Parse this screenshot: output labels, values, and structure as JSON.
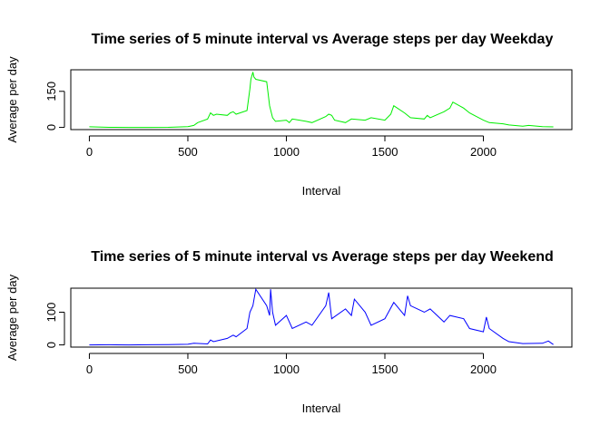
{
  "chart_data": [
    {
      "type": "line",
      "title": "Time series of 5 minute interval vs Average steps per day Weekday",
      "x_label": "Interval",
      "y_label": "Average per day",
      "xlim": [
        -94.2,
        2449.2
      ],
      "ylim": [
        -9.2,
        239.6
      ],
      "xticks": [
        0,
        500,
        1000,
        1500,
        2000
      ],
      "yticks": [
        0,
        150
      ],
      "x": [
        0,
        100,
        200,
        300,
        400,
        500,
        530,
        550,
        600,
        615,
        630,
        645,
        700,
        715,
        730,
        745,
        800,
        815,
        820,
        830,
        835,
        845,
        900,
        915,
        930,
        945,
        1000,
        1015,
        1030,
        1100,
        1130,
        1200,
        1215,
        1230,
        1245,
        1300,
        1330,
        1400,
        1430,
        1500,
        1530,
        1545,
        1600,
        1630,
        1700,
        1715,
        1730,
        1800,
        1830,
        1845,
        1900,
        1930,
        2000,
        2030,
        2100,
        2130,
        2200,
        2230,
        2300,
        2355
      ],
      "series": [
        {
          "name": "Weekday",
          "color": "#00ee00",
          "values": [
            2.3,
            0.4,
            0,
            0,
            0.2,
            3,
            8,
            20,
            35,
            60,
            50,
            55,
            50,
            60,
            65,
            55,
            70,
            160,
            200,
            230,
            210,
            200,
            190,
            90,
            40,
            25,
            30,
            20,
            35,
            25,
            20,
            45,
            55,
            50,
            30,
            20,
            35,
            30,
            40,
            30,
            55,
            90,
            60,
            40,
            35,
            50,
            40,
            65,
            80,
            105,
            80,
            60,
            30,
            20,
            15,
            10,
            5,
            8,
            3,
            2
          ]
        }
      ]
    },
    {
      "type": "line",
      "title": "Time series of 5 minute interval vs Average steps per day Weekend",
      "x_label": "Interval",
      "y_label": "Average per day",
      "xlim": [
        -94.2,
        2449.2
      ],
      "ylim": [
        -6.7,
        173.4
      ],
      "xticks": [
        0,
        500,
        1000,
        1500,
        2000
      ],
      "yticks": [
        0,
        100
      ],
      "x": [
        0,
        100,
        200,
        300,
        400,
        500,
        530,
        600,
        615,
        630,
        700,
        730,
        745,
        800,
        815,
        830,
        845,
        900,
        915,
        920,
        930,
        945,
        1000,
        1030,
        1100,
        1130,
        1200,
        1215,
        1230,
        1300,
        1330,
        1345,
        1400,
        1430,
        1500,
        1545,
        1600,
        1615,
        1630,
        1700,
        1730,
        1800,
        1830,
        1900,
        1930,
        2000,
        2015,
        2030,
        2100,
        2130,
        2200,
        2300,
        2330,
        2355
      ],
      "series": [
        {
          "name": "Weekend",
          "color": "#0000ff",
          "values": [
            0,
            0.5,
            0,
            0.5,
            1,
            2,
            5,
            3,
            15,
            10,
            20,
            30,
            25,
            50,
            100,
            120,
            170,
            120,
            90,
            170,
            100,
            60,
            90,
            50,
            70,
            60,
            120,
            160,
            80,
            110,
            90,
            140,
            100,
            60,
            80,
            130,
            90,
            150,
            120,
            100,
            110,
            70,
            90,
            80,
            50,
            40,
            85,
            50,
            20,
            10,
            4,
            5,
            12,
            1
          ]
        }
      ]
    }
  ]
}
